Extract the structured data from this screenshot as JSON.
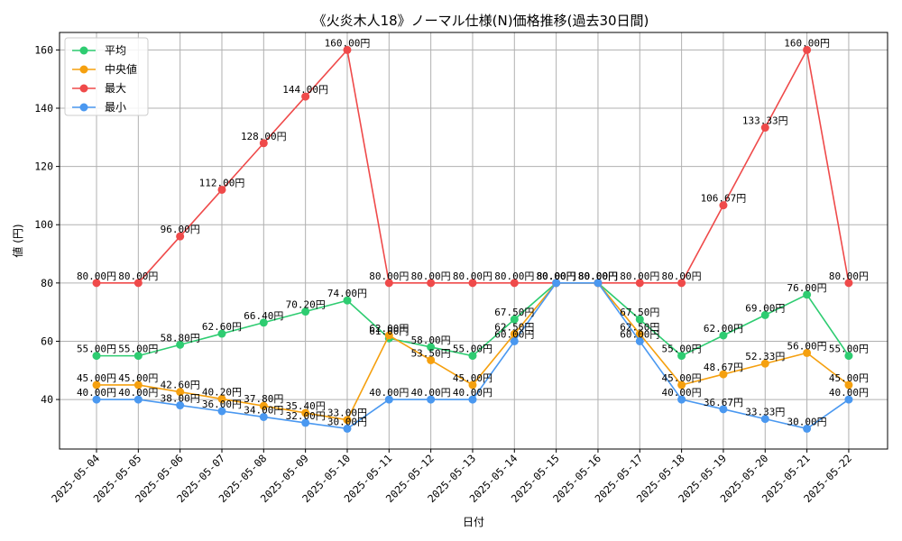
{
  "chart_data": {
    "type": "line",
    "title": "《火炎木人18》ノーマル仕様(N)価格推移(過去30日間)",
    "xlabel": "日付",
    "ylabel": "値 (円)",
    "ylim": [
      23,
      166
    ],
    "yticks": [
      40,
      60,
      80,
      100,
      120,
      140,
      160
    ],
    "grid": true,
    "legend_position": "top-left",
    "label_suffix": "円",
    "categories": [
      "2025-05-04",
      "2025-05-05",
      "2025-05-06",
      "2025-05-07",
      "2025-05-08",
      "2025-05-09",
      "2025-05-10",
      "2025-05-11",
      "2025-05-12",
      "2025-05-13",
      "2025-05-14",
      "2025-05-15",
      "2025-05-16",
      "2025-05-17",
      "2025-05-18",
      "2025-05-19",
      "2025-05-20",
      "2025-05-21",
      "2025-05-22"
    ],
    "series": [
      {
        "name": "平均",
        "color": "#2ecc71",
        "values": [
          55.0,
          55.0,
          58.8,
          62.6,
          66.4,
          70.2,
          74.0,
          61.0,
          58.0,
          55.0,
          67.5,
          80.0,
          80.0,
          67.5,
          55.0,
          62.0,
          69.0,
          76.0,
          55.0
        ]
      },
      {
        "name": "中央値",
        "color": "#f5a00f",
        "values": [
          45.0,
          45.0,
          42.6,
          40.2,
          37.8,
          35.4,
          33.0,
          62.0,
          53.5,
          45.0,
          62.5,
          80.0,
          80.0,
          62.5,
          45.0,
          48.67,
          52.33,
          56.0,
          45.0
        ]
      },
      {
        "name": "最大",
        "color": "#ef4a4a",
        "values": [
          80.0,
          80.0,
          96.0,
          112.0,
          128.0,
          144.0,
          160.0,
          80.0,
          80.0,
          80.0,
          80.0,
          80.0,
          80.0,
          80.0,
          80.0,
          106.67,
          133.33,
          160.0,
          80.0
        ]
      },
      {
        "name": "最小",
        "color": "#4a98f0",
        "values": [
          40.0,
          40.0,
          38.0,
          36.0,
          34.0,
          32.0,
          30.0,
          40.0,
          40.0,
          40.0,
          60.0,
          80.0,
          80.0,
          60.0,
          40.0,
          36.67,
          33.33,
          30.0,
          40.0
        ]
      }
    ]
  }
}
